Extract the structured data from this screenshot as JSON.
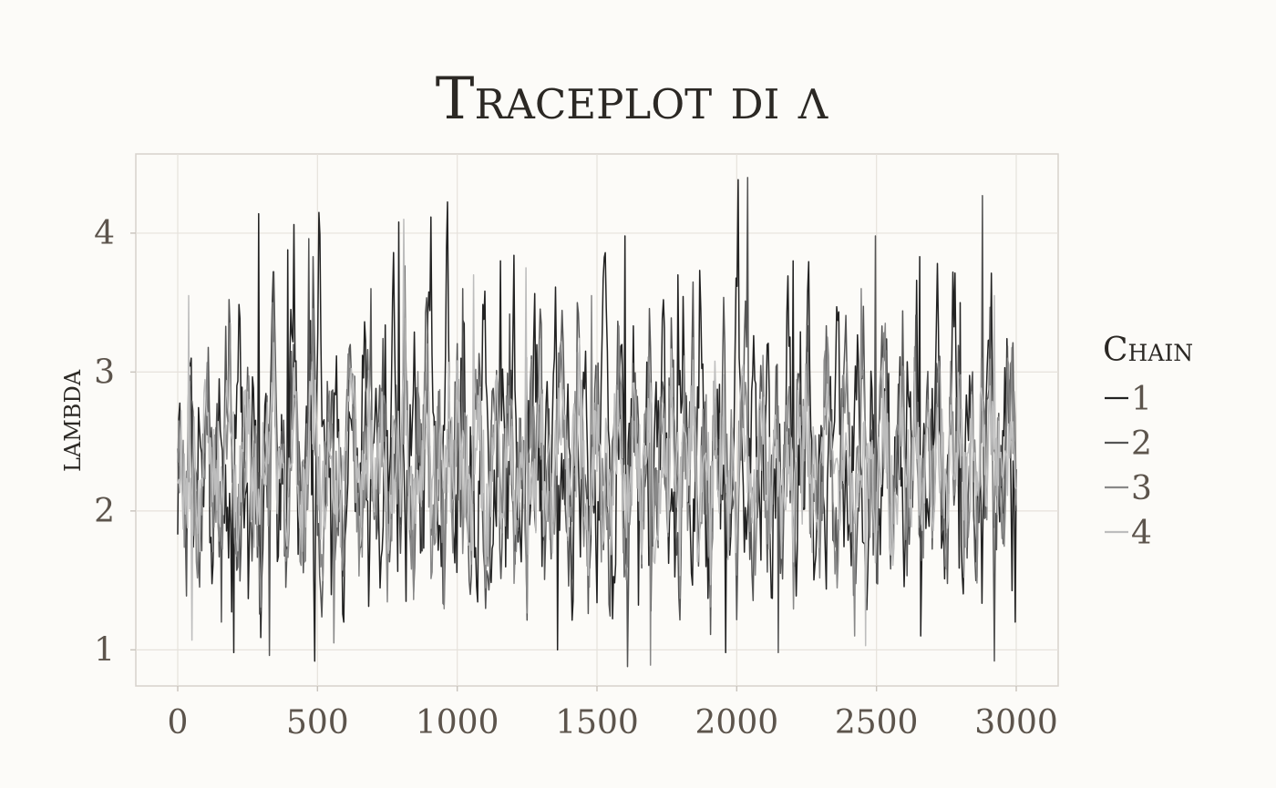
{
  "chart_data": {
    "type": "line",
    "title": "Traceplot di λ",
    "xlabel": "",
    "ylabel": "lambda",
    "xlim": [
      -150,
      3150
    ],
    "ylim": [
      0.74,
      4.57
    ],
    "x_ticks": [
      "0",
      "500",
      "1000",
      "1500",
      "2000",
      "2500",
      "3000"
    ],
    "y_ticks": [
      "1",
      "2",
      "3",
      "4"
    ],
    "grid": true,
    "legend_position": "right",
    "legend_title": "Chain",
    "series_colors": [
      "#222222",
      "#555555",
      "#888888",
      "#bdbdbd"
    ],
    "iterations": [
      0,
      3000
    ],
    "approx_mean": 2.2,
    "series": [
      {
        "name": "1",
        "color": "#222222",
        "values": [
          2.18,
          2.6,
          1.85,
          2.95,
          1.6,
          2.32,
          2.05,
          3.1,
          1.72,
          2.4,
          2.85,
          1.95,
          2.2,
          1.55,
          2.7,
          3.18,
          2.0,
          1.78,
          2.55,
          2.3,
          1.4,
          2.9,
          2.15,
          3.3,
          1.9,
          2.45,
          1.65,
          2.75,
          3.93,
          2.1,
          1.82,
          2.5,
          2.95,
          1.35,
          4.14,
          2.25,
          2.62,
          1.7,
          3.05,
          2.0,
          1.58,
          2.38,
          2.88,
          1.92,
          2.46,
          3.15,
          1.75,
          2.2,
          2.68,
          1.48,
          2.92,
          2.12,
          3.42,
          1.88,
          2.3,
          1.62,
          2.58,
          3.0,
          2.05,
          1.8,
          2.75,
          3.91,
          2.18,
          1.52,
          2.42,
          3.84,
          2.0,
          1.7,
          2.6,
          3.25,
          1.95,
          2.36,
          1.45,
          2.82,
          3.6,
          2.1,
          1.68,
          2.5,
          3.02,
          1.86,
          2.28,
          3.9,
          1.55,
          2.15,
          2.72,
          1.98,
          3.15,
          2.4,
          1.6,
          2.85,
          2.0,
          3.82,
          1.78,
          2.25,
          2.6,
          1.4,
          2.95,
          2.1,
          3.3,
          1.85,
          2.48,
          1.66,
          2.78,
          3.88,
          2.05,
          1.5,
          2.55,
          2.92,
          1.9,
          2.32,
          3.12,
          1.74,
          2.2,
          2.66,
          1.42,
          3.05,
          2.15,
          3.55,
          1.82,
          2.38,
          1.6,
          2.8,
          3.27,
          2.02,
          1.7,
          2.52,
          3.85,
          2.12,
          1.48,
          2.44,
          3.0,
          1.96,
          2.3,
          1.55,
          2.86,
          3.95,
          2.08,
          1.62,
          2.58,
          3.1,
          1.8,
          2.26,
          3.3,
          1.6,
          2.18,
          2.74,
          1.95,
          3.38,
          2.35,
          1.58,
          2.9,
          2.05,
          3.62,
          1.75,
          2.22,
          2.64,
          1.36,
          2.98,
          2.16,
          3.45,
          1.88,
          2.46,
          1.68,
          2.8,
          3.2,
          2.0,
          1.55,
          2.6,
          2.9,
          1.92,
          2.34,
          3.08,
          1.7,
          2.24,
          2.7,
          1.45,
          3.02,
          2.14,
          3.5,
          1.84,
          2.4,
          1.64,
          2.78,
          3.34,
          2.06,
          1.72,
          2.5,
          3.7,
          2.1,
          1.5,
          2.42,
          3.1,
          1.94,
          2.28,
          1.6,
          2.88,
          3.42,
          2.04,
          1.66,
          2.56,
          3.06,
          1.82,
          2.3
        ],
        "spikes": [
          [
            50,
            3.1
          ],
          [
            290,
            4.14
          ],
          [
            395,
            3.88
          ],
          [
            790,
            4.08
          ],
          [
            960,
            3.9
          ],
          [
            1155,
            3.8
          ],
          [
            1600,
            3.98
          ],
          [
            1790,
            3.7
          ],
          [
            2200,
            3.8
          ],
          [
            2655,
            3.83
          ],
          [
            2800,
            3.5
          ]
        ],
        "dips": [
          [
            200,
            0.98
          ],
          [
            1360,
            1.0
          ],
          [
            1960,
            0.98
          ],
          [
            2660,
            1.1
          ],
          [
            2995,
            1.2
          ]
        ]
      },
      {
        "name": "2",
        "color": "#555555",
        "values": [
          2.1,
          2.5,
          1.7,
          2.85,
          2.0,
          1.55,
          2.7,
          3.0,
          1.9,
          2.35,
          1.62,
          2.9,
          3.2,
          2.05,
          1.75,
          2.45,
          3.05,
          1.85,
          2.3,
          1.5,
          2.8,
          2.15,
          3.4,
          1.95,
          2.5,
          1.6,
          2.72,
          3.1,
          2.02,
          1.8,
          2.6,
          3.5,
          2.1,
          1.45,
          2.4,
          2.95,
          1.9,
          2.25,
          1.58,
          2.84,
          3.25,
          2.0,
          1.68,
          2.55,
          3.0,
          1.82,
          2.28,
          3.15,
          1.6,
          2.18,
          2.7,
          1.96,
          3.35,
          2.3,
          1.52,
          2.86,
          2.08,
          3.45,
          1.72,
          2.2,
          2.62,
          1.4,
          2.95,
          2.12,
          3.28,
          1.86,
          2.42,
          1.64,
          2.76,
          3.15,
          1.98,
          1.5,
          2.52,
          2.88,
          1.9,
          2.3,
          3.05,
          1.72,
          2.2,
          2.64,
          1.44,
          3.0,
          2.12,
          3.4,
          1.8,
          2.36,
          1.62,
          2.78,
          3.2,
          2.04,
          1.7,
          2.5,
          3.3,
          2.08,
          1.48,
          2.4,
          3.02,
          1.92,
          2.26,
          1.58,
          2.84,
          3.22,
          2.02,
          1.65,
          2.56,
          3.05,
          1.8,
          2.28,
          3.12,
          1.6,
          2.16,
          2.7,
          1.94,
          3.3,
          2.32,
          1.55,
          2.88,
          2.04,
          3.38,
          1.74,
          2.2,
          2.62,
          1.38,
          2.96,
          2.14,
          3.26,
          1.86,
          2.44,
          1.66,
          2.78,
          3.1,
          1.98,
          1.52,
          2.58,
          2.86,
          1.9,
          2.32,
          3.04,
          1.7,
          2.22,
          2.68,
          1.46,
          3.0,
          2.12,
          3.42,
          1.82,
          2.38,
          1.62,
          2.76,
          3.24,
          2.04,
          1.7,
          2.48,
          3.3,
          2.08,
          1.5,
          2.4,
          3.04,
          1.92,
          2.26,
          1.58,
          2.86,
          3.2,
          2.02,
          1.66,
          2.54,
          3.0,
          1.8,
          2.28,
          3.1,
          1.62,
          2.16,
          2.72,
          1.95,
          3.28,
          2.32,
          1.56,
          2.88,
          2.04,
          3.36,
          1.74,
          2.2,
          2.6,
          1.4,
          2.94,
          2.14,
          3.22,
          1.86,
          2.44,
          1.66,
          2.76,
          3.14,
          2.0
        ],
        "spikes": [
          [
            470,
            3.96
          ],
          [
            690,
            3.6
          ],
          [
            1020,
            3.6
          ],
          [
            1430,
            3.5
          ],
          [
            2040,
            4.4
          ],
          [
            2495,
            3.98
          ],
          [
            2880,
            4.27
          ]
        ],
        "dips": [
          [
            330,
            0.96
          ],
          [
            1610,
            0.88
          ],
          [
            2150,
            0.98
          ],
          [
            2920,
            0.92
          ]
        ]
      },
      {
        "name": "3",
        "color": "#888888",
        "values": [
          2.2,
          2.45,
          1.9,
          2.7,
          2.05,
          1.75,
          2.6,
          2.85,
          2.0,
          2.3,
          1.8,
          2.75,
          2.95,
          2.1,
          1.88,
          2.4,
          2.8,
          1.95,
          2.25,
          1.7,
          2.65,
          2.15,
          3.0,
          2.0,
          2.42,
          1.78,
          2.62,
          2.9,
          2.08,
          1.9,
          2.5,
          3.05,
          2.12,
          1.68,
          2.36,
          2.8,
          1.98,
          2.22,
          1.76,
          2.68,
          2.96,
          2.04,
          1.84,
          2.46,
          2.82,
          1.94,
          2.28,
          2.9,
          1.78,
          2.18,
          2.6,
          2.02,
          3.0,
          2.26,
          1.72,
          2.7,
          2.1,
          3.05,
          1.86,
          2.2,
          2.52,
          1.66,
          2.76,
          2.14,
          2.95,
          1.96,
          2.38,
          1.8,
          2.64,
          2.9,
          2.04,
          1.72,
          2.44,
          2.78,
          1.98,
          2.28,
          2.86,
          1.84,
          2.2,
          2.56,
          1.7,
          2.8,
          2.12,
          3.0,
          1.9,
          2.34,
          1.78,
          2.66,
          2.92,
          2.06,
          1.82,
          2.46,
          2.98,
          2.1,
          1.7,
          2.36,
          2.82,
          2.0,
          2.24,
          1.76,
          2.7,
          2.94,
          2.04,
          1.84,
          2.48,
          2.84,
          1.92,
          2.28,
          2.9,
          1.8,
          2.18,
          2.62,
          2.0,
          2.98,
          2.28,
          1.74,
          2.72,
          2.1,
          3.0,
          1.86,
          2.22,
          2.54,
          1.66,
          2.78,
          2.14,
          2.94,
          1.96,
          2.4,
          1.8,
          2.66,
          2.88,
          2.02,
          1.72,
          2.46,
          2.76,
          1.98,
          2.3,
          2.84,
          1.84,
          2.22,
          2.58,
          1.7,
          2.8,
          2.14,
          3.02,
          1.9,
          2.34,
          1.78,
          2.64,
          2.92,
          2.06,
          1.82,
          2.44,
          2.96,
          2.1,
          1.7,
          2.38,
          2.82,
          2.0,
          2.26,
          1.76,
          2.7,
          2.92,
          2.04,
          1.84,
          2.48,
          2.8,
          1.92,
          2.3,
          2.88,
          1.8,
          2.2,
          2.62,
          2.02,
          2.96,
          2.28,
          1.74,
          2.72,
          2.1,
          2.98,
          1.86,
          2.22,
          2.52,
          1.68,
          2.76,
          2.16,
          2.92,
          1.96,
          2.42,
          1.8,
          2.66,
          2.86,
          2.04
        ],
        "spikes": [
          [
            340,
            3.5
          ],
          [
            1480,
            3.55
          ],
          [
            2445,
            3.6
          ]
        ],
        "dips": [
          [
            560,
            1.05
          ],
          [
            1690,
            0.89
          ],
          [
            2420,
            1.1
          ]
        ]
      },
      {
        "name": "4",
        "color": "#bdbdbd",
        "values": [
          2.25,
          2.4,
          2.05,
          2.6,
          2.15,
          1.95,
          2.5,
          2.7,
          2.1,
          2.3,
          1.98,
          2.58,
          2.78,
          2.18,
          2.02,
          2.42,
          2.66,
          2.08,
          2.28,
          1.92,
          2.55,
          2.2,
          2.82,
          2.12,
          2.38,
          1.96,
          2.52,
          2.74,
          2.16,
          2.04,
          2.44,
          2.86,
          2.2,
          1.9,
          2.34,
          2.64,
          2.1,
          2.26,
          1.94,
          2.56,
          2.8,
          2.14,
          2.0,
          2.4,
          2.68,
          2.06,
          2.3,
          2.76,
          1.98,
          2.22,
          2.5,
          2.12,
          2.84,
          2.28,
          1.92,
          2.6,
          2.18,
          2.88,
          2.02,
          2.24,
          2.46,
          1.88,
          2.66,
          2.2,
          2.8,
          2.1,
          2.36,
          1.98,
          2.54,
          2.76,
          2.14,
          1.94,
          2.42,
          2.7,
          2.1,
          2.3,
          2.72,
          2.0,
          2.24,
          2.5,
          1.92,
          2.68,
          2.18,
          2.84,
          2.06,
          2.34,
          1.98,
          2.58,
          2.78,
          2.16,
          2.02,
          2.44,
          2.82,
          2.2,
          1.92,
          2.36,
          2.66,
          2.12,
          2.26,
          1.96,
          2.6,
          2.8,
          2.14,
          2.02,
          2.42,
          2.72,
          2.08,
          2.3,
          2.76,
          2.0,
          2.22,
          2.52,
          2.12,
          2.82,
          2.3,
          1.94,
          2.62,
          2.2,
          2.86,
          2.04,
          2.26,
          2.46,
          1.9,
          2.68,
          2.2,
          2.8,
          2.1,
          2.38,
          1.98,
          2.56,
          2.74,
          2.14,
          1.94,
          2.44,
          2.68,
          2.1,
          2.32,
          2.74,
          2.0,
          2.24,
          2.5,
          1.92,
          2.7,
          2.18,
          2.86,
          2.06,
          2.34,
          1.98,
          2.58,
          2.8,
          2.16,
          2.02,
          2.42,
          2.84,
          2.2,
          1.92,
          2.38,
          2.68,
          2.12,
          2.28,
          1.96,
          2.6,
          2.78,
          2.14,
          2.02,
          2.44,
          2.7,
          2.08,
          2.3,
          2.76,
          2.0,
          2.22,
          2.54,
          2.12,
          2.82,
          2.3,
          1.94,
          2.62,
          2.2,
          2.84,
          2.04,
          2.26,
          2.46,
          1.9,
          2.66,
          2.2,
          2.8,
          2.1,
          2.4,
          1.98,
          2.56,
          2.72,
          2.16
        ],
        "spikes": [
          [
            40,
            3.55
          ],
          [
            810,
            4.1
          ],
          [
            1060,
            3.7
          ],
          [
            1245,
            3.75
          ],
          [
            2920,
            3.55
          ]
        ],
        "dips": [
          [
            50,
            1.07
          ],
          [
            2460,
            1.03
          ]
        ]
      }
    ]
  }
}
